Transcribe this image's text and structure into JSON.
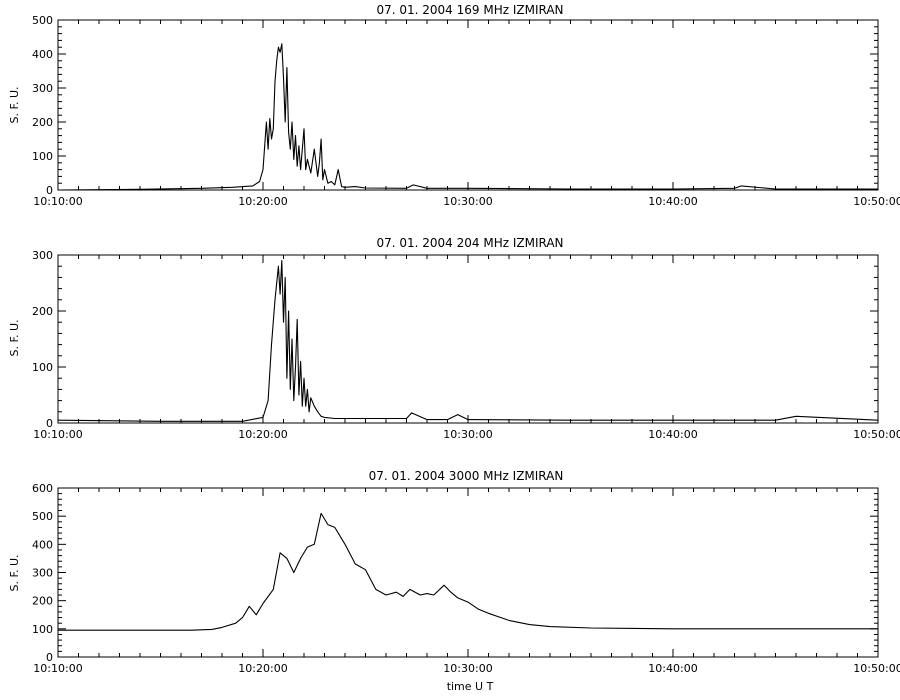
{
  "figure": {
    "xaxis_title": "time U T"
  },
  "chart_data": [
    {
      "type": "line",
      "title": "07. 01. 2004   169 MHz   IZMIRAN",
      "ylabel": "S. F. U.",
      "xlabel": "",
      "x_ticks": [
        "10:10:00",
        "10:20:00",
        "10:30:00",
        "10:40:00",
        "10:50:00"
      ],
      "x_range": [
        "10:10:00",
        "10:50:00"
      ],
      "y_ticks": [
        0,
        100,
        200,
        300,
        400,
        500
      ],
      "ylim": [
        0,
        500
      ],
      "series": [
        {
          "x": [
            "10:10:00",
            "10:14:00",
            "10:17:00",
            "10:18:30",
            "10:19:30",
            "10:19:50",
            "10:20:00",
            "10:20:10",
            "10:20:15",
            "10:20:20",
            "10:20:25",
            "10:20:30",
            "10:20:35",
            "10:20:40",
            "10:20:45",
            "10:20:50",
            "10:20:55",
            "10:21:00",
            "10:21:05",
            "10:21:10",
            "10:21:15",
            "10:21:20",
            "10:21:25",
            "10:21:30",
            "10:21:35",
            "10:21:40",
            "10:21:45",
            "10:21:50",
            "10:22:00",
            "10:22:05",
            "10:22:10",
            "10:22:20",
            "10:22:30",
            "10:22:40",
            "10:22:45",
            "10:22:50",
            "10:22:55",
            "10:23:00",
            "10:23:10",
            "10:23:20",
            "10:23:30",
            "10:23:40",
            "10:23:50",
            "10:24:00",
            "10:24:30",
            "10:25:00",
            "10:27:00",
            "10:27:20",
            "10:28:00",
            "10:30:00",
            "10:35:00",
            "10:40:00",
            "10:43:00",
            "10:43:20",
            "10:45:00",
            "10:50:00"
          ],
          "y": [
            0,
            2,
            5,
            8,
            12,
            25,
            60,
            200,
            120,
            210,
            150,
            180,
            320,
            380,
            420,
            405,
            430,
            330,
            200,
            360,
            170,
            120,
            200,
            90,
            160,
            70,
            130,
            60,
            180,
            60,
            90,
            50,
            120,
            40,
            80,
            150,
            30,
            60,
            20,
            25,
            15,
            60,
            10,
            8,
            10,
            6,
            5,
            15,
            5,
            5,
            3,
            3,
            5,
            12,
            3,
            3
          ]
        }
      ]
    },
    {
      "type": "line",
      "title": "07. 01. 2004   204 MHz   IZMIRAN",
      "ylabel": "S. F. U.",
      "xlabel": "",
      "x_ticks": [
        "10:10:00",
        "10:20:00",
        "10:30:00",
        "10:40:00",
        "10:50:00"
      ],
      "x_range": [
        "10:10:00",
        "10:50:00"
      ],
      "y_ticks": [
        0,
        100,
        200,
        300
      ],
      "ylim": [
        0,
        300
      ],
      "series": [
        {
          "x": [
            "10:10:00",
            "10:15:00",
            "10:19:00",
            "10:20:00",
            "10:20:15",
            "10:20:25",
            "10:20:35",
            "10:20:45",
            "10:20:50",
            "10:20:55",
            "10:21:00",
            "10:21:05",
            "10:21:10",
            "10:21:15",
            "10:21:20",
            "10:21:25",
            "10:21:30",
            "10:21:35",
            "10:21:40",
            "10:21:45",
            "10:21:50",
            "10:21:55",
            "10:22:00",
            "10:22:05",
            "10:22:10",
            "10:22:15",
            "10:22:20",
            "10:22:30",
            "10:22:40",
            "10:22:50",
            "10:23:00",
            "10:23:30",
            "10:24:00",
            "10:27:00",
            "10:27:15",
            "10:28:00",
            "10:29:00",
            "10:29:30",
            "10:30:00",
            "10:35:00",
            "10:40:00",
            "10:45:00",
            "10:46:00",
            "10:50:00"
          ],
          "y": [
            5,
            3,
            3,
            10,
            40,
            140,
            220,
            280,
            230,
            290,
            180,
            260,
            80,
            200,
            60,
            150,
            40,
            100,
            185,
            50,
            110,
            30,
            80,
            30,
            60,
            20,
            45,
            30,
            20,
            12,
            10,
            8,
            8,
            8,
            18,
            6,
            6,
            15,
            6,
            5,
            5,
            5,
            12,
            5
          ]
        }
      ]
    },
    {
      "type": "line",
      "title": "07. 01. 2004   3000 MHz   IZMIRAN",
      "ylabel": "S. F. U.",
      "xlabel": "time U T",
      "x_ticks": [
        "10:10:00",
        "10:20:00",
        "10:30:00",
        "10:40:00",
        "10:50:00"
      ],
      "x_range": [
        "10:10:00",
        "10:50:00"
      ],
      "y_ticks": [
        0,
        100,
        200,
        300,
        400,
        500,
        600
      ],
      "ylim": [
        0,
        600
      ],
      "series": [
        {
          "x": [
            "10:10:00",
            "10:16:30",
            "10:17:30",
            "10:18:00",
            "10:18:40",
            "10:19:00",
            "10:19:20",
            "10:19:40",
            "10:20:00",
            "10:20:30",
            "10:20:50",
            "10:21:10",
            "10:21:30",
            "10:21:50",
            "10:22:10",
            "10:22:30",
            "10:22:50",
            "10:23:10",
            "10:23:30",
            "10:24:00",
            "10:24:30",
            "10:25:00",
            "10:25:30",
            "10:26:00",
            "10:26:30",
            "10:26:50",
            "10:27:10",
            "10:27:40",
            "10:28:00",
            "10:28:20",
            "10:28:50",
            "10:29:10",
            "10:29:30",
            "10:30:00",
            "10:30:30",
            "10:31:00",
            "10:32:00",
            "10:33:00",
            "10:34:00",
            "10:36:00",
            "10:40:00",
            "10:45:00",
            "10:50:00"
          ],
          "y": [
            95,
            95,
            98,
            105,
            120,
            140,
            180,
            150,
            190,
            240,
            370,
            350,
            300,
            350,
            390,
            400,
            510,
            470,
            460,
            400,
            330,
            310,
            240,
            220,
            230,
            215,
            240,
            220,
            225,
            220,
            255,
            230,
            210,
            195,
            170,
            155,
            130,
            115,
            108,
            103,
            100,
            100,
            100
          ]
        }
      ]
    }
  ]
}
